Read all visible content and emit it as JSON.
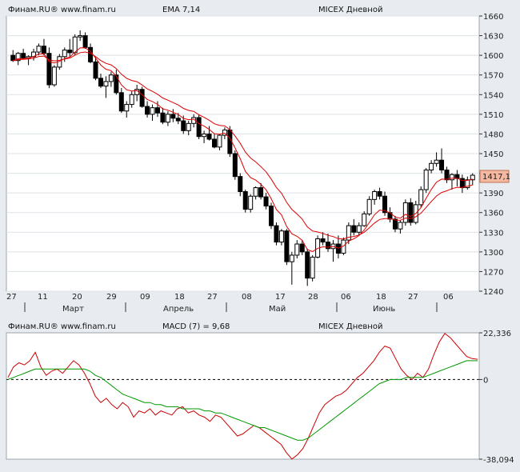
{
  "colors": {
    "background": "#e8ecf1",
    "plot_bg": "#ffffff",
    "grid": "#dde2e8",
    "ema": "#dd0000",
    "macd": "#cc0000",
    "signal": "#009900",
    "candle_up": "#ffffff",
    "candle_down": "#000000",
    "last_price_box": "#f5b8a0",
    "ema_label": "#cc0000",
    "macd_label": "#1a3fd0"
  },
  "price_panel": {
    "header": {
      "source": "Финам.RU® www.finam.ru",
      "indicator": "EMA 7,14",
      "title": "MICEX Дневной"
    },
    "y_ticks": [
      "1660",
      "1630",
      "1600",
      "1570",
      "1540",
      "1510",
      "1480",
      "1450",
      "1420",
      "1390",
      "1360",
      "1330",
      "1300",
      "1270",
      "1240"
    ],
    "last_price_label": "1417,1"
  },
  "date_axis": {
    "days": [
      "27",
      "11",
      "20",
      "29",
      "09",
      "18",
      "27",
      "08",
      "17",
      "28",
      "06",
      "18",
      "27",
      "06"
    ],
    "months": [
      "Март",
      "Апрель",
      "Май",
      "Июнь"
    ]
  },
  "macd_panel": {
    "header": {
      "source": "Финам.RU® www.finam.ru",
      "indicator": "MACD (7) = 9,68",
      "title": "MICEX Дневной"
    },
    "y_ticks": [
      "22,336",
      "0",
      "-38,094"
    ]
  },
  "chart_data": [
    {
      "type": "candlestick",
      "title": "MICEX Дневной",
      "ylim": [
        1240,
        1660
      ],
      "x_day_labels": [
        "27",
        "11",
        "20",
        "29",
        "09",
        "18",
        "27",
        "08",
        "17",
        "28",
        "06",
        "18",
        "27",
        "06"
      ],
      "x_month_labels": [
        "Март",
        "Апрель",
        "Май",
        "Июнь"
      ],
      "candles": [
        [
          1600,
          1608,
          1590,
          1592
        ],
        [
          1592,
          1605,
          1585,
          1603
        ],
        [
          1603,
          1610,
          1594,
          1596
        ],
        [
          1596,
          1600,
          1585,
          1598
        ],
        [
          1598,
          1610,
          1592,
          1605
        ],
        [
          1605,
          1618,
          1600,
          1614
        ],
        [
          1614,
          1625,
          1600,
          1603
        ],
        [
          1603,
          1612,
          1550,
          1555
        ],
        [
          1555,
          1585,
          1552,
          1582
        ],
        [
          1582,
          1602,
          1578,
          1598
        ],
        [
          1598,
          1612,
          1590,
          1608
        ],
        [
          1608,
          1625,
          1598,
          1604
        ],
        [
          1604,
          1632,
          1600,
          1628
        ],
        [
          1628,
          1638,
          1622,
          1630
        ],
        [
          1630,
          1635,
          1610,
          1612
        ],
        [
          1612,
          1618,
          1588,
          1590
        ],
        [
          1590,
          1598,
          1562,
          1565
        ],
        [
          1565,
          1572,
          1550,
          1553
        ],
        [
          1553,
          1568,
          1535,
          1560
        ],
        [
          1560,
          1575,
          1552,
          1570
        ],
        [
          1570,
          1578,
          1540,
          1543
        ],
        [
          1543,
          1550,
          1512,
          1515
        ],
        [
          1515,
          1530,
          1505,
          1525
        ],
        [
          1525,
          1545,
          1520,
          1540
        ],
        [
          1540,
          1555,
          1530,
          1548
        ],
        [
          1548,
          1552,
          1520,
          1522
        ],
        [
          1522,
          1530,
          1505,
          1510
        ],
        [
          1510,
          1525,
          1500,
          1520
        ],
        [
          1520,
          1530,
          1506,
          1512
        ],
        [
          1512,
          1520,
          1495,
          1498
        ],
        [
          1498,
          1515,
          1492,
          1510
        ],
        [
          1510,
          1518,
          1498,
          1504
        ],
        [
          1504,
          1512,
          1495,
          1500
        ],
        [
          1500,
          1508,
          1480,
          1485
        ],
        [
          1485,
          1500,
          1478,
          1496
        ],
        [
          1496,
          1510,
          1490,
          1505
        ],
        [
          1505,
          1510,
          1472,
          1476
        ],
        [
          1476,
          1485,
          1466,
          1480
        ],
        [
          1480,
          1492,
          1470,
          1472
        ],
        [
          1472,
          1480,
          1458,
          1460
        ],
        [
          1460,
          1480,
          1455,
          1478
        ],
        [
          1478,
          1490,
          1472,
          1486
        ],
        [
          1486,
          1492,
          1445,
          1450
        ],
        [
          1450,
          1455,
          1410,
          1415
        ],
        [
          1415,
          1420,
          1385,
          1392
        ],
        [
          1392,
          1395,
          1360,
          1365
        ],
        [
          1365,
          1388,
          1360,
          1385
        ],
        [
          1385,
          1400,
          1380,
          1398
        ],
        [
          1398,
          1405,
          1380,
          1384
        ],
        [
          1384,
          1390,
          1365,
          1370
        ],
        [
          1370,
          1375,
          1335,
          1340
        ],
        [
          1340,
          1345,
          1310,
          1315
        ],
        [
          1315,
          1335,
          1310,
          1332
        ],
        [
          1332,
          1335,
          1280,
          1285
        ],
        [
          1285,
          1300,
          1250,
          1295
        ],
        [
          1295,
          1318,
          1290,
          1312
        ],
        [
          1312,
          1318,
          1295,
          1300
        ],
        [
          1300,
          1305,
          1248,
          1260
        ],
        [
          1260,
          1295,
          1255,
          1292
        ],
        [
          1292,
          1325,
          1290,
          1320
        ],
        [
          1320,
          1330,
          1310,
          1315
        ],
        [
          1315,
          1328,
          1300,
          1305
        ],
        [
          1305,
          1318,
          1285,
          1312
        ],
        [
          1312,
          1325,
          1290,
          1298
        ],
        [
          1298,
          1322,
          1295,
          1318
        ],
        [
          1318,
          1345,
          1312,
          1340
        ],
        [
          1340,
          1350,
          1325,
          1330
        ],
        [
          1330,
          1345,
          1325,
          1340
        ],
        [
          1340,
          1362,
          1338,
          1358
        ],
        [
          1358,
          1385,
          1355,
          1380
        ],
        [
          1380,
          1395,
          1372,
          1392
        ],
        [
          1392,
          1398,
          1380,
          1385
        ],
        [
          1385,
          1392,
          1355,
          1360
        ],
        [
          1360,
          1368,
          1345,
          1350
        ],
        [
          1350,
          1355,
          1330,
          1335
        ],
        [
          1335,
          1348,
          1328,
          1345
        ],
        [
          1345,
          1380,
          1340,
          1375
        ],
        [
          1375,
          1382,
          1340,
          1345
        ],
        [
          1345,
          1378,
          1342,
          1372
        ],
        [
          1372,
          1400,
          1368,
          1395
        ],
        [
          1395,
          1428,
          1390,
          1425
        ],
        [
          1425,
          1440,
          1420,
          1435
        ],
        [
          1435,
          1452,
          1430,
          1440
        ],
        [
          1440,
          1458,
          1420,
          1425
        ],
        [
          1425,
          1430,
          1405,
          1410
        ],
        [
          1410,
          1420,
          1395,
          1418
        ],
        [
          1418,
          1425,
          1400,
          1412
        ],
        [
          1412,
          1418,
          1390,
          1398
        ],
        [
          1398,
          1415,
          1395,
          1410
        ],
        [
          1410,
          1420,
          1402,
          1417
        ]
      ],
      "ema7_last": 1406,
      "ema14_last": 1398
    },
    {
      "type": "line",
      "title": "MACD (7) = 9,68",
      "ylim": [
        -38.094,
        22.336
      ],
      "series": [
        {
          "values": [
            1,
            6,
            8,
            7,
            9,
            13,
            6,
            2,
            4,
            5,
            3,
            6,
            9,
            7,
            3,
            -2,
            -8,
            -11,
            -9,
            -12,
            -14,
            -11,
            -13,
            -18,
            -15,
            -16,
            -14,
            -17,
            -15,
            -16,
            -17,
            -14,
            -13,
            -16,
            -15,
            -17,
            -18,
            -20,
            -17,
            -18,
            -21,
            -24,
            -27,
            -26,
            -24,
            -22,
            -23,
            -25,
            -27,
            -29,
            -31,
            -35,
            -38,
            -36,
            -33,
            -28,
            -22,
            -16,
            -12,
            -10,
            -8,
            -7,
            -5,
            -2,
            1,
            3,
            6,
            9,
            13,
            16,
            15,
            10,
            5,
            2,
            0,
            3,
            1,
            5,
            12,
            18,
            22,
            20,
            17,
            14,
            11,
            10,
            9.68
          ]
        },
        {
          "values": [
            0,
            1,
            2,
            3,
            4,
            5,
            5,
            5,
            5,
            5,
            5,
            5,
            5,
            5,
            5,
            4,
            2,
            1,
            -1,
            -3,
            -5,
            -7,
            -8,
            -9,
            -10,
            -11,
            -11,
            -12,
            -12,
            -13,
            -13,
            -13,
            -14,
            -14,
            -14,
            -14,
            -15,
            -15,
            -16,
            -16,
            -17,
            -18,
            -19,
            -20,
            -21,
            -22,
            -23,
            -23,
            -24,
            -25,
            -26,
            -27,
            -28,
            -29,
            -29,
            -28,
            -26,
            -24,
            -22,
            -20,
            -18,
            -16,
            -14,
            -12,
            -10,
            -8,
            -6,
            -4,
            -2,
            -1,
            0,
            0,
            0,
            1,
            1,
            1,
            1,
            2,
            3,
            4,
            5,
            6,
            7,
            8,
            9,
            9,
            9
          ]
        }
      ]
    }
  ]
}
